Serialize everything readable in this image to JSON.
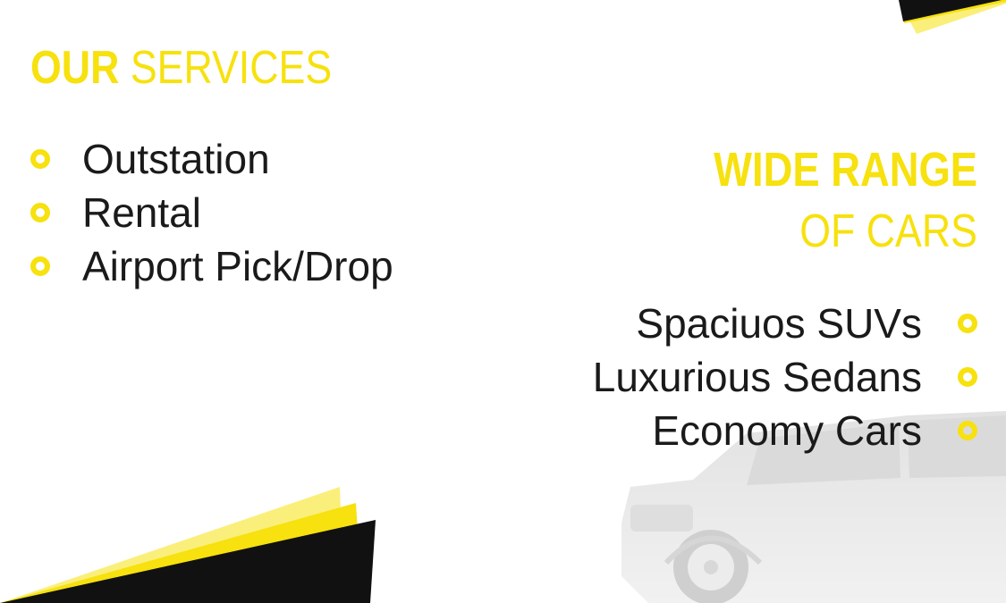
{
  "left_section": {
    "title_bold": "OUR",
    "title_light": "SERVICES",
    "items": [
      "Outstation",
      "Rental",
      "Airport Pick/Drop"
    ]
  },
  "right_section": {
    "title_bold": "WIDE RANGE",
    "title_light": "OF CARS",
    "items": [
      "Spaciuos SUVs",
      "Luxurious Sedans",
      "Economy Cars"
    ]
  },
  "colors": {
    "accent": "#f7e10e",
    "dark": "#111111",
    "text": "#1a1a1a"
  },
  "icons": {
    "bullet": "ring-bullet-icon",
    "car": "suv-car-image"
  }
}
